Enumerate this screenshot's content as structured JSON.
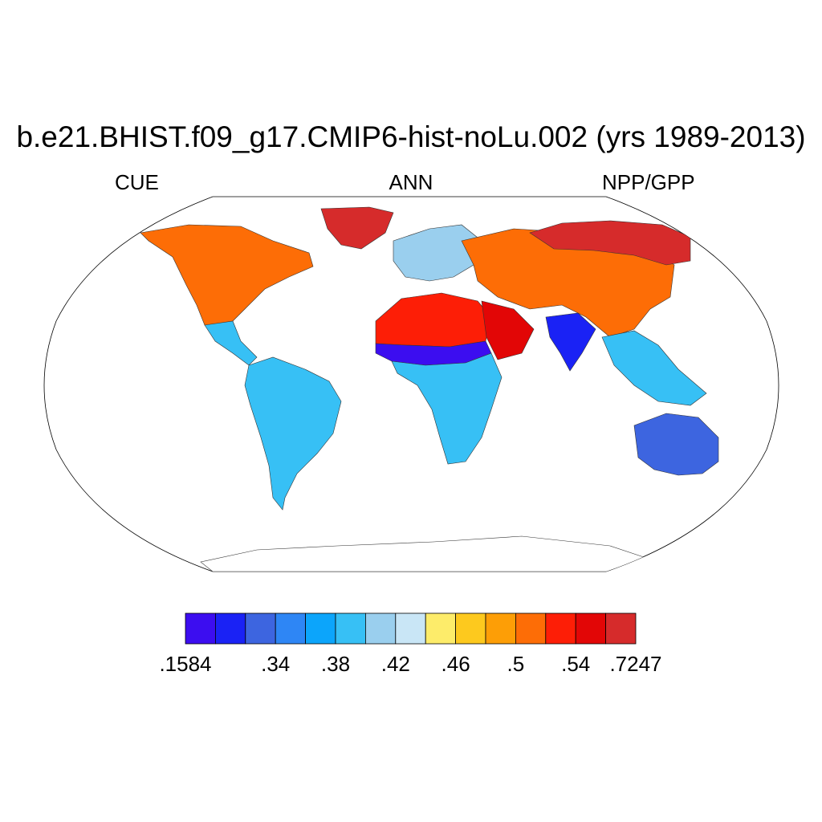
{
  "title": "b.e21.BHIST.f09_g17.CMIP6-hist-noLu.002 (yrs 1989-2013)",
  "subtitles": {
    "left": "CUE",
    "center": "ANN",
    "right": "NPP/GPP"
  },
  "map": {
    "projection": "Robinson",
    "variable": "CUE",
    "season": "ANN",
    "units_label": "NPP/GPP",
    "regions": [
      {
        "name": "north-america",
        "level": 11
      },
      {
        "name": "central-america",
        "level": 5
      },
      {
        "name": "south-america",
        "level": 5
      },
      {
        "name": "greenland",
        "level": 14
      },
      {
        "name": "europe",
        "level": 6
      },
      {
        "name": "north-africa-sahara",
        "level": 12
      },
      {
        "name": "sahel",
        "level": 0
      },
      {
        "name": "central-southern-africa",
        "level": 5
      },
      {
        "name": "arabia",
        "level": 13
      },
      {
        "name": "asia",
        "level": 11
      },
      {
        "name": "siberia",
        "level": 14
      },
      {
        "name": "india",
        "level": 1
      },
      {
        "name": "southeast-asia",
        "level": 5
      },
      {
        "name": "australia",
        "level": 2
      },
      {
        "name": "antarctica",
        "level": -1
      }
    ]
  },
  "colorbar": {
    "colors": [
      "#3c0df0",
      "#1a22f5",
      "#3d65e0",
      "#2e86f5",
      "#0ca5fb",
      "#37c0f5",
      "#9acfee",
      "#c9e6f6",
      "#fdec6a",
      "#fdc91e",
      "#fd9e06",
      "#fd6d06",
      "#fd1e06",
      "#e20606",
      "#d62b2b"
    ],
    "labels": [
      ".1584",
      ".34",
      ".38",
      ".42",
      ".46",
      ".5",
      ".54",
      ".7247"
    ],
    "label_box_index": [
      0,
      3,
      5,
      7,
      9,
      11,
      13,
      15
    ]
  }
}
